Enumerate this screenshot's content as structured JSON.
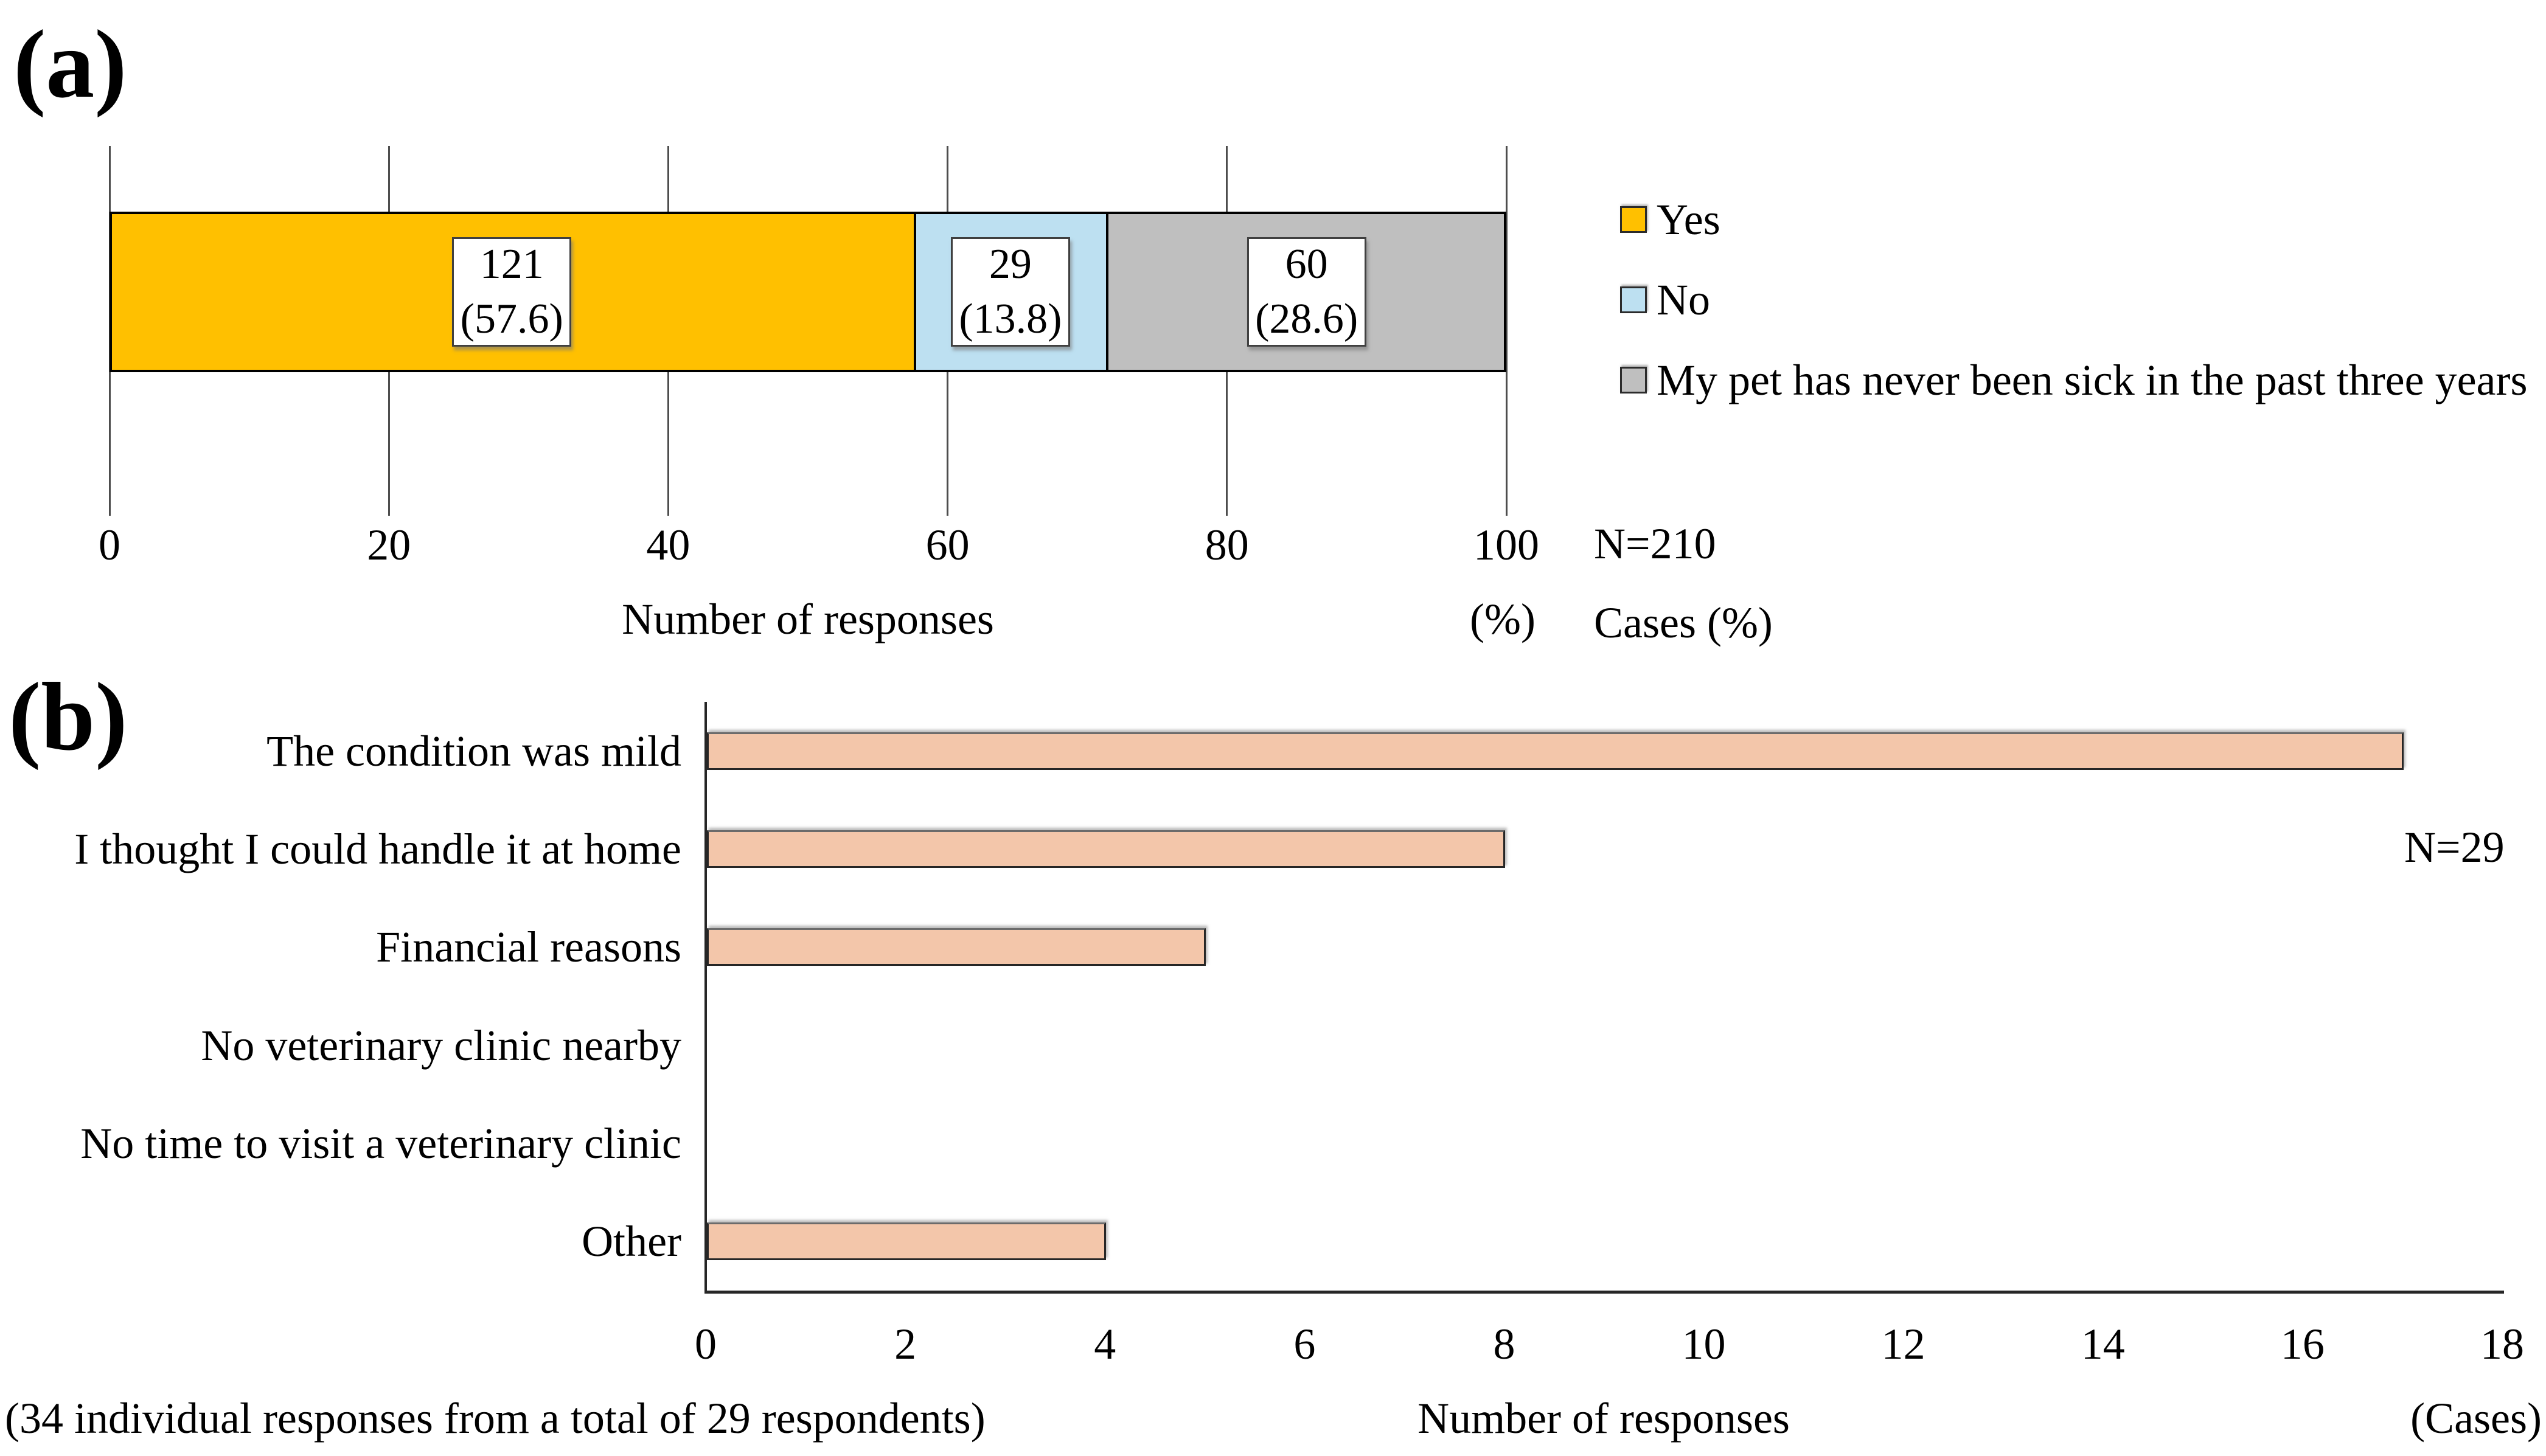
{
  "figure": {
    "panel_a": {
      "panel_label": "(a)",
      "axis_title": "Number of responses",
      "axis_unit_label": "(%)",
      "sample_note_line1": "N=210",
      "sample_note_line2": "Cases (%)",
      "x_ticks": [
        "0",
        "20",
        "40",
        "60",
        "80",
        "100"
      ],
      "legend": [
        {
          "label": "Yes",
          "color": "#FFC000"
        },
        {
          "label": "No",
          "color": "#BDE0F1"
        },
        {
          "label": "My pet has never been sick in the past three years",
          "color": "#BFBFBF"
        }
      ],
      "segments": [
        {
          "label": "Yes",
          "count": "121",
          "percent_label": "(57.6)",
          "value": 57.6,
          "color": "#FFC000"
        },
        {
          "label": "No",
          "count": "29",
          "percent_label": "(13.8)",
          "value": 13.8,
          "color": "#BDE0F1"
        },
        {
          "label": "My pet has never been sick in the past three years",
          "count": "60",
          "percent_label": "(28.6)",
          "value": 28.6,
          "color": "#BFBFBF"
        }
      ]
    },
    "panel_b": {
      "panel_label": "(b)",
      "axis_title": "Number of responses",
      "axis_unit_label": "(Cases)",
      "sample_note": "N=29",
      "footnote": "(34 individual responses from a total of 29 respondents)",
      "x_ticks": [
        "0",
        "2",
        "4",
        "6",
        "8",
        "10",
        "12",
        "14",
        "16",
        "18"
      ],
      "bar_color": "#F3C6AA",
      "categories": [
        "The condition was mild",
        "I thought I could handle it at home",
        "Financial reasons",
        "No veterinary clinic nearby",
        "No time to visit a veterinary clinic",
        "Other"
      ],
      "values": [
        17,
        8,
        5,
        0,
        0,
        4
      ]
    }
  },
  "chart_data": [
    {
      "type": "bar",
      "subtype": "stacked-horizontal-percentage",
      "title": "(a)",
      "xlabel": "Number of responses",
      "x_unit": "(%)",
      "xlim": [
        0,
        100
      ],
      "x_ticks": [
        0,
        20,
        40,
        60,
        80,
        100
      ],
      "grid": true,
      "legend_position": "right",
      "sample_size": "N=210",
      "value_format": "Cases (%)",
      "series": [
        {
          "name": "Yes",
          "count": 121,
          "percent": 57.6,
          "color": "#FFC000"
        },
        {
          "name": "No",
          "count": 29,
          "percent": 13.8,
          "color": "#BDE0F1"
        },
        {
          "name": "My pet has never been sick in the past three years",
          "count": 60,
          "percent": 28.6,
          "color": "#BFBFBF"
        }
      ]
    },
    {
      "type": "bar",
      "subtype": "horizontal",
      "title": "(b)",
      "xlabel": "Number of responses",
      "x_unit": "(Cases)",
      "xlim": [
        0,
        18
      ],
      "x_ticks": [
        0,
        2,
        4,
        6,
        8,
        10,
        12,
        14,
        16,
        18
      ],
      "grid": false,
      "sample_size": "N=29",
      "footnote": "(34 individual responses from a total of 29 respondents)",
      "categories": [
        "The condition was mild",
        "I thought I could handle it at home",
        "Financial reasons",
        "No veterinary clinic nearby",
        "No time to visit a veterinary clinic",
        "Other"
      ],
      "values": [
        17,
        8,
        5,
        0,
        0,
        4
      ],
      "bar_color": "#F3C6AA"
    }
  ]
}
